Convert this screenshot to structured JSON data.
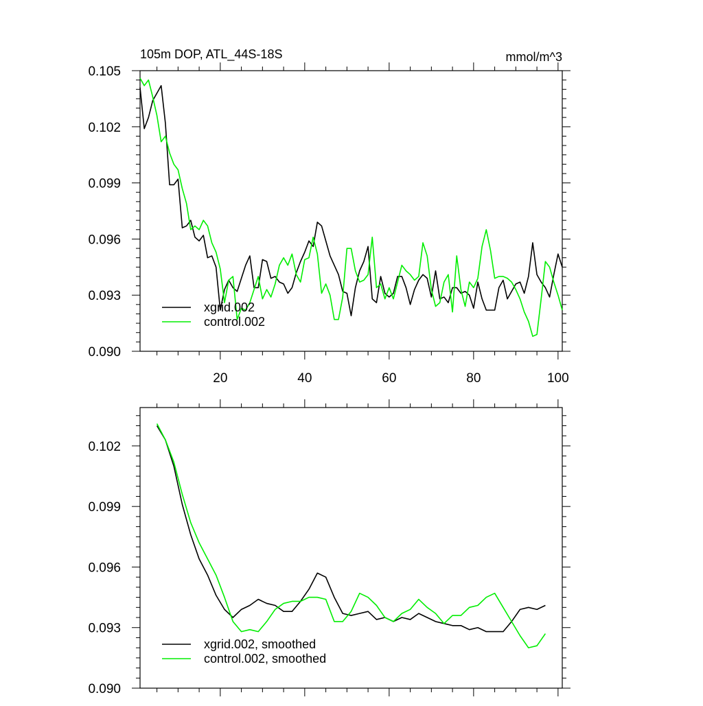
{
  "chart_data": [
    {
      "type": "line",
      "title": "105m DOP, ATL_44S-18S",
      "right_title": "mmol/m^3",
      "x": [
        1,
        2,
        3,
        4,
        5,
        6,
        7,
        8,
        9,
        10,
        11,
        12,
        13,
        14,
        15,
        16,
        17,
        18,
        19,
        20,
        21,
        22,
        23,
        24,
        25,
        26,
        27,
        28,
        29,
        30,
        31,
        32,
        33,
        34,
        35,
        36,
        37,
        38,
        39,
        40,
        41,
        42,
        43,
        44,
        45,
        46,
        47,
        48,
        49,
        50,
        51,
        52,
        53,
        54,
        55,
        56,
        57,
        58,
        59,
        60,
        61,
        62,
        63,
        64,
        65,
        66,
        67,
        68,
        69,
        70,
        71,
        72,
        73,
        74,
        75,
        76,
        77,
        78,
        79,
        80,
        81,
        82,
        83,
        84,
        85,
        86,
        87,
        88,
        89,
        90,
        91,
        92,
        93,
        94,
        95,
        96,
        97,
        98,
        99,
        100,
        101
      ],
      "series": [
        {
          "name": "xgrid.002",
          "color": "#000000",
          "values": [
            0.1041,
            0.1019,
            0.1025,
            0.1034,
            0.1038,
            0.1042,
            0.1022,
            0.0989,
            0.0989,
            0.0992,
            0.0966,
            0.0967,
            0.097,
            0.0961,
            0.0959,
            0.0962,
            0.095,
            0.0951,
            0.0945,
            0.0922,
            0.0933,
            0.0938,
            0.0934,
            0.0932,
            0.0939,
            0.0946,
            0.0951,
            0.0934,
            0.0934,
            0.0949,
            0.0948,
            0.0939,
            0.094,
            0.0937,
            0.0936,
            0.0931,
            0.0934,
            0.0942,
            0.0948,
            0.0953,
            0.0959,
            0.0956,
            0.0969,
            0.0967,
            0.0959,
            0.0951,
            0.0946,
            0.0941,
            0.0932,
            0.0931,
            0.0919,
            0.0934,
            0.0943,
            0.0948,
            0.0956,
            0.0928,
            0.0926,
            0.094,
            0.0931,
            0.0929,
            0.0931,
            0.094,
            0.094,
            0.0934,
            0.0925,
            0.0933,
            0.0938,
            0.0941,
            0.0939,
            0.0929,
            0.0943,
            0.0928,
            0.0929,
            0.0926,
            0.0934,
            0.0934,
            0.0931,
            0.0932,
            0.093,
            0.0923,
            0.0937,
            0.0928,
            0.0922,
            0.0922,
            0.0922,
            0.0934,
            0.0938,
            0.0928,
            0.0932,
            0.0936,
            0.0937,
            0.0931,
            0.094,
            0.0958,
            0.0941,
            0.0937,
            0.0934,
            0.0929,
            0.0941,
            0.0952,
            0.0945
          ]
        },
        {
          "name": "control.002",
          "color": "#00ee00",
          "values": [
            0.1046,
            0.1042,
            0.1045,
            0.1036,
            0.1026,
            0.1012,
            0.1015,
            0.1006,
            0.1,
            0.0997,
            0.0987,
            0.0979,
            0.0965,
            0.0967,
            0.0965,
            0.097,
            0.0967,
            0.0958,
            0.0953,
            0.0944,
            0.0926,
            0.0938,
            0.094,
            0.0917,
            0.0923,
            0.0922,
            0.0926,
            0.0933,
            0.094,
            0.0928,
            0.0933,
            0.0929,
            0.0936,
            0.0946,
            0.095,
            0.0946,
            0.0952,
            0.0941,
            0.0937,
            0.0949,
            0.095,
            0.0961,
            0.0952,
            0.0931,
            0.0936,
            0.093,
            0.0917,
            0.0917,
            0.0929,
            0.0955,
            0.0955,
            0.0943,
            0.0937,
            0.0938,
            0.0941,
            0.0961,
            0.0934,
            0.0936,
            0.0928,
            0.0934,
            0.0928,
            0.0937,
            0.0946,
            0.0943,
            0.0941,
            0.0938,
            0.094,
            0.0958,
            0.0951,
            0.0933,
            0.0924,
            0.0926,
            0.0937,
            0.0941,
            0.0921,
            0.0951,
            0.0933,
            0.0924,
            0.0937,
            0.0934,
            0.0939,
            0.0956,
            0.0965,
            0.0954,
            0.0939,
            0.094,
            0.094,
            0.0939,
            0.0937,
            0.0933,
            0.0928,
            0.0921,
            0.0916,
            0.0908,
            0.0909,
            0.0928,
            0.0948,
            0.0945,
            0.0937,
            0.093,
            0.0922
          ]
        }
      ],
      "xlim": [
        1,
        101
      ],
      "xticks": [
        20,
        40,
        60,
        80,
        100
      ],
      "xtick_labels": true,
      "ylim": [
        0.09,
        0.105
      ],
      "yticks": [
        {
          "value": 0.09,
          "label": "0.090"
        },
        0.093,
        0.096,
        0.099,
        0.102,
        0.105
      ],
      "grid": false,
      "legend": "lower-left"
    },
    {
      "type": "line",
      "x": [
        5,
        7,
        9,
        11,
        13,
        15,
        17,
        19,
        21,
        23,
        25,
        27,
        29,
        31,
        33,
        35,
        37,
        39,
        41,
        43,
        45,
        47,
        49,
        51,
        53,
        55,
        57,
        59,
        61,
        63,
        65,
        67,
        69,
        71,
        73,
        75,
        77,
        79,
        81,
        83,
        85,
        87,
        89,
        91,
        93,
        95,
        97
      ],
      "series": [
        {
          "name": "xgrid.002, smoothed",
          "color": "#000000",
          "values": [
            0.103,
            0.1023,
            0.101,
            0.0991,
            0.0976,
            0.0964,
            0.0956,
            0.0946,
            0.0939,
            0.0935,
            0.0939,
            0.0941,
            0.0944,
            0.0942,
            0.0941,
            0.0938,
            0.0938,
            0.0943,
            0.0949,
            0.0957,
            0.0955,
            0.0945,
            0.0937,
            0.0936,
            0.0937,
            0.0938,
            0.0934,
            0.0935,
            0.0933,
            0.0935,
            0.0934,
            0.0937,
            0.0935,
            0.0933,
            0.0932,
            0.0931,
            0.0931,
            0.0929,
            0.093,
            0.0928,
            0.0928,
            0.0928,
            0.0933,
            0.0939,
            0.094,
            0.0939,
            0.0941
          ]
        },
        {
          "name": "control.002, smoothed",
          "color": "#00ee00",
          "values": [
            0.1031,
            0.1023,
            0.1012,
            0.0996,
            0.0982,
            0.0972,
            0.0964,
            0.0956,
            0.0945,
            0.0933,
            0.0928,
            0.0929,
            0.0928,
            0.0933,
            0.0939,
            0.0942,
            0.0943,
            0.0943,
            0.0945,
            0.0945,
            0.0944,
            0.0933,
            0.0933,
            0.0938,
            0.0947,
            0.0945,
            0.0941,
            0.0935,
            0.0933,
            0.0937,
            0.0939,
            0.0944,
            0.094,
            0.0937,
            0.0932,
            0.0936,
            0.0936,
            0.094,
            0.0941,
            0.0945,
            0.0947,
            0.094,
            0.0933,
            0.0926,
            0.092,
            0.0921,
            0.0927
          ]
        }
      ],
      "xlim": [
        1,
        101
      ],
      "xticks": [
        20,
        40,
        60,
        80,
        100
      ],
      "xtick_labels": false,
      "ylim": [
        0.09,
        0.1039
      ],
      "yticks": [
        {
          "value": 0.09,
          "label": "0.090"
        },
        0.093,
        0.096,
        0.099,
        0.102
      ],
      "grid": false,
      "legend": "lower-left"
    }
  ]
}
